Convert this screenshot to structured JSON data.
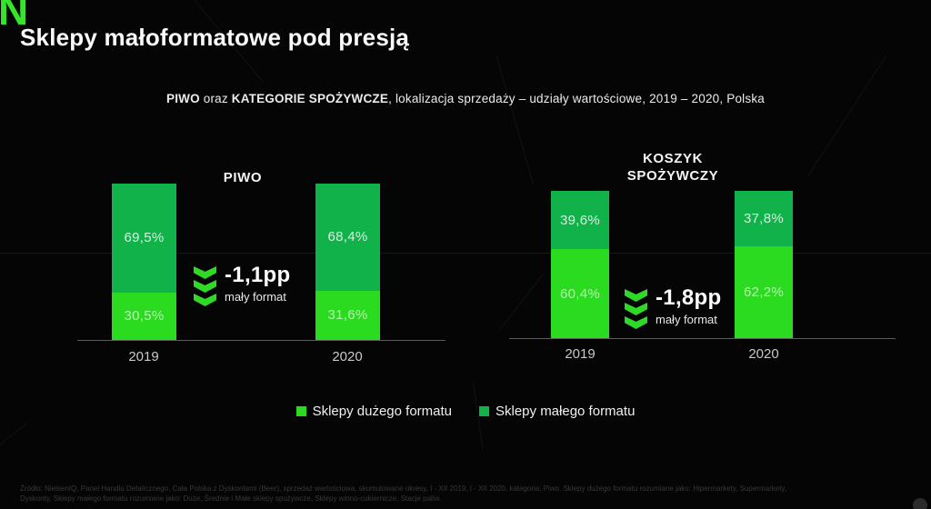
{
  "slide": {
    "logo_letter": "N",
    "title": "Sklepy małoformatowe pod presją",
    "subtitle": {
      "part1": "PIWO",
      "part2": " oraz ",
      "part3": "KATEGORIE SPOŻYWCZE",
      "part4": ", lokalizacja sprzedaży – udziały wartościowe, 2019 – 2020, Polska"
    },
    "footer_line1": "Źródło: NielsenIQ, Panel Handlu Detalicznego, Cała Polska z Dyskontami (Beer), sprzedaż wartościowa, skumulowane okresy, I - XII 2019, I - XII 2020,  kategoria: Piwo. Sklepy dużego formatu rozumiane jako: Hipermarkety, Supermarkety,",
    "footer_line2": "Dyskonty, Sklepy małego formatu rozumiane jako: Duże, Średnie i Małe sklepy spożywcze, Sklepy winno-cukiernicze, Stacje paliw."
  },
  "colors": {
    "background": "#050505",
    "large_format_green": "#2bdb1f",
    "small_format_green": "#12b24b",
    "logo_green": "#35e42b",
    "accent_white": "#ffffff"
  },
  "legend": {
    "items": [
      {
        "label": "Sklepy dużego formatu",
        "color": "#2bdb1f"
      },
      {
        "label": "Sklepy małego formatu",
        "color": "#12b24b"
      }
    ]
  },
  "chart_data": [
    {
      "type": "bar",
      "stacked": true,
      "title": "PIWO",
      "categories": [
        "2019",
        "2020"
      ],
      "ylim": [
        0,
        100
      ],
      "unit": "%",
      "legend_position": "bottom",
      "series": [
        {
          "name": "Sklepy dużego formatu",
          "color": "#2bdb1f",
          "values": [
            30.5,
            31.6
          ],
          "labels": [
            "30,5%",
            "31,6%"
          ]
        },
        {
          "name": "Sklepy małego formatu",
          "color": "#12b24b",
          "values": [
            69.5,
            68.4
          ],
          "labels": [
            "69,5%",
            "68,4%"
          ]
        }
      ],
      "change_annotation": {
        "value": "-1,1pp",
        "label": "mały format"
      }
    },
    {
      "type": "bar",
      "stacked": true,
      "title": "KOSZYK SPOŻYWCZY",
      "categories": [
        "2019",
        "2020"
      ],
      "ylim": [
        0,
        100
      ],
      "unit": "%",
      "legend_position": "bottom",
      "series": [
        {
          "name": "Sklepy dużego formatu",
          "color": "#2bdb1f",
          "values": [
            60.4,
            62.2
          ],
          "labels": [
            "60,4%",
            "62,2%"
          ]
        },
        {
          "name": "Sklepy małego formatu",
          "color": "#12b24b",
          "values": [
            39.6,
            37.8
          ],
          "labels": [
            "39,6%",
            "37,8%"
          ]
        }
      ],
      "change_annotation": {
        "value": "-1,8pp",
        "label": "mały format"
      }
    }
  ]
}
